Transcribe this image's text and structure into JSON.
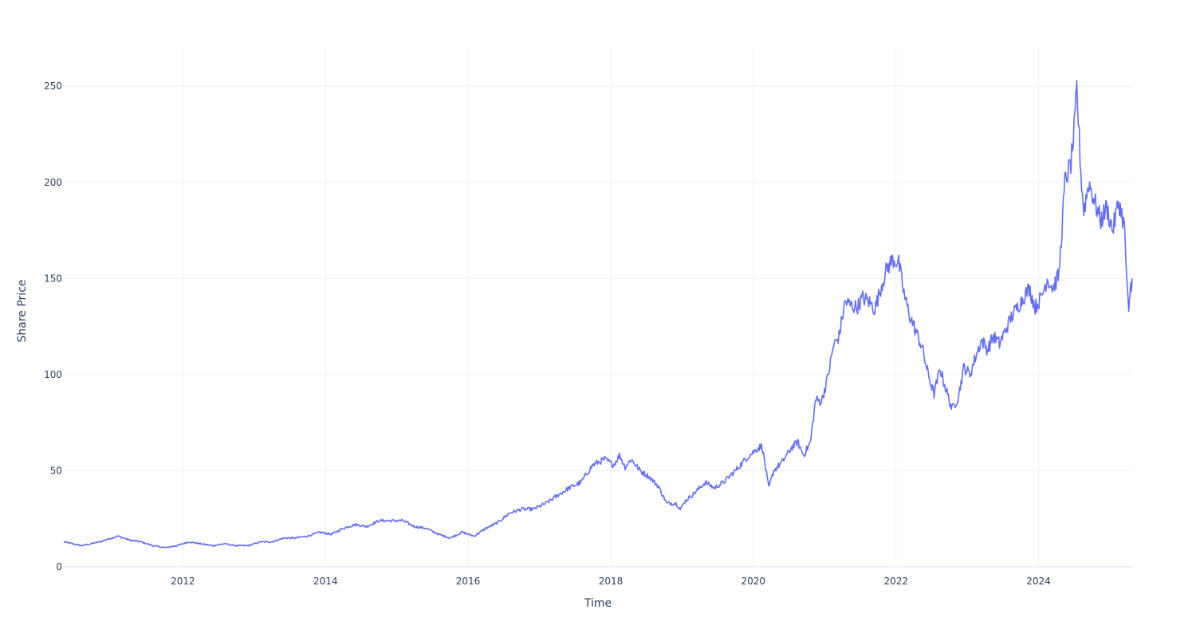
{
  "chart_data": {
    "type": "line",
    "title": "",
    "xlabel": "Time",
    "ylabel": "Share Price",
    "xlim": [
      "2010-05-01",
      "2025-04-25"
    ],
    "ylim": [
      0,
      270
    ],
    "x_ticks": [
      {
        "label": "2012",
        "date": "2012-01-01"
      },
      {
        "label": "2014",
        "date": "2014-01-01"
      },
      {
        "label": "2016",
        "date": "2016-01-01"
      },
      {
        "label": "2018",
        "date": "2018-01-01"
      },
      {
        "label": "2020",
        "date": "2020-01-01"
      },
      {
        "label": "2022",
        "date": "2022-01-01"
      },
      {
        "label": "2024",
        "date": "2024-01-01"
      }
    ],
    "y_ticks": [
      {
        "label": "0",
        "value": 0
      },
      {
        "label": "50",
        "value": 50
      },
      {
        "label": "100",
        "value": 100
      },
      {
        "label": "150",
        "value": 150
      },
      {
        "label": "200",
        "value": 200
      },
      {
        "label": "250",
        "value": 250
      }
    ],
    "grid": true,
    "legend": "none",
    "colors": {
      "series": "#636efa",
      "grid": "#ebf0f8",
      "text": "#2a3f5f",
      "background": "#ffffff"
    },
    "series": [
      {
        "x": [
          "2010-05-01",
          "2010-08-01",
          "2010-11-01",
          "2011-02-01",
          "2011-04-01",
          "2011-06-01",
          "2011-08-01",
          "2011-10-01",
          "2011-12-01",
          "2012-02-01",
          "2012-04-01",
          "2012-06-01",
          "2012-08-01",
          "2012-10-01",
          "2012-12-01",
          "2013-02-01",
          "2013-04-01",
          "2013-06-01",
          "2013-08-01",
          "2013-10-01",
          "2013-12-01",
          "2014-02-01",
          "2014-04-01",
          "2014-06-01",
          "2014-08-01",
          "2014-10-01",
          "2014-12-01",
          "2015-02-01",
          "2015-04-01",
          "2015-06-01",
          "2015-08-01",
          "2015-10-01",
          "2015-12-01",
          "2016-02-01",
          "2016-04-01",
          "2016-06-01",
          "2016-08-01",
          "2016-10-01",
          "2016-12-01",
          "2017-02-01",
          "2017-04-01",
          "2017-06-01",
          "2017-08-01",
          "2017-10-01",
          "2017-12-01",
          "2018-01-15",
          "2018-02-15",
          "2018-03-15",
          "2018-04-15",
          "2018-06-01",
          "2018-07-15",
          "2018-09-01",
          "2018-10-15",
          "2018-12-01",
          "2018-12-24",
          "2019-01-15",
          "2019-03-01",
          "2019-05-01",
          "2019-06-15",
          "2019-08-01",
          "2019-10-01",
          "2019-12-01",
          "2020-01-15",
          "2020-02-15",
          "2020-03-20",
          "2020-04-15",
          "2020-06-01",
          "2020-07-15",
          "2020-08-15",
          "2020-09-15",
          "2020-10-20",
          "2020-11-15",
          "2020-12-15",
          "2021-01-15",
          "2021-02-15",
          "2021-03-15",
          "2021-04-15",
          "2021-05-15",
          "2021-06-15",
          "2021-07-15",
          "2021-08-15",
          "2021-09-15",
          "2021-10-15",
          "2021-11-15",
          "2021-12-15",
          "2022-01-15",
          "2022-02-15",
          "2022-03-15",
          "2022-04-15",
          "2022-05-15",
          "2022-06-15",
          "2022-07-15",
          "2022-08-15",
          "2022-09-15",
          "2022-10-15",
          "2022-11-15",
          "2022-12-15",
          "2023-01-15",
          "2023-02-15",
          "2023-03-15",
          "2023-04-15",
          "2023-05-15",
          "2023-06-15",
          "2023-07-15",
          "2023-08-15",
          "2023-09-15",
          "2023-10-15",
          "2023-11-15",
          "2023-12-15",
          "2024-01-15",
          "2024-02-15",
          "2024-03-15",
          "2024-04-15",
          "2024-05-15",
          "2024-06-15",
          "2024-07-05",
          "2024-07-15",
          "2024-08-05",
          "2024-08-20",
          "2024-09-15",
          "2024-10-15",
          "2024-11-15",
          "2024-12-15",
          "2025-01-15",
          "2025-02-15",
          "2025-03-15",
          "2025-04-07",
          "2025-04-15",
          "2025-04-25"
        ],
        "y": [
          13,
          11,
          13,
          16,
          14,
          13,
          11,
          10,
          11,
          13,
          12,
          11,
          12,
          11,
          11,
          13,
          13,
          15,
          15,
          16,
          18,
          17,
          20,
          22,
          21,
          24,
          24,
          24,
          21,
          20,
          17,
          15,
          18,
          16,
          20,
          23,
          28,
          30,
          30,
          33,
          37,
          41,
          44,
          53,
          56,
          53,
          58,
          52,
          56,
          50,
          47,
          42,
          33,
          33,
          30,
          34,
          38,
          44,
          41,
          44,
          50,
          57,
          61,
          63,
          41,
          50,
          55,
          62,
          65,
          58,
          65,
          87,
          86,
          98,
          115,
          120,
          138,
          136,
          135,
          140,
          138,
          134,
          145,
          155,
          160,
          158,
          140,
          130,
          122,
          114,
          100,
          90,
          103,
          92,
          82,
          88,
          104,
          100,
          110,
          118,
          113,
          120,
          116,
          123,
          130,
          135,
          140,
          145,
          135,
          140,
          150,
          145,
          152,
          200,
          210,
          230,
          250,
          205,
          185,
          200,
          190,
          180,
          187,
          175,
          190,
          178,
          130,
          145,
          150
        ]
      }
    ]
  }
}
